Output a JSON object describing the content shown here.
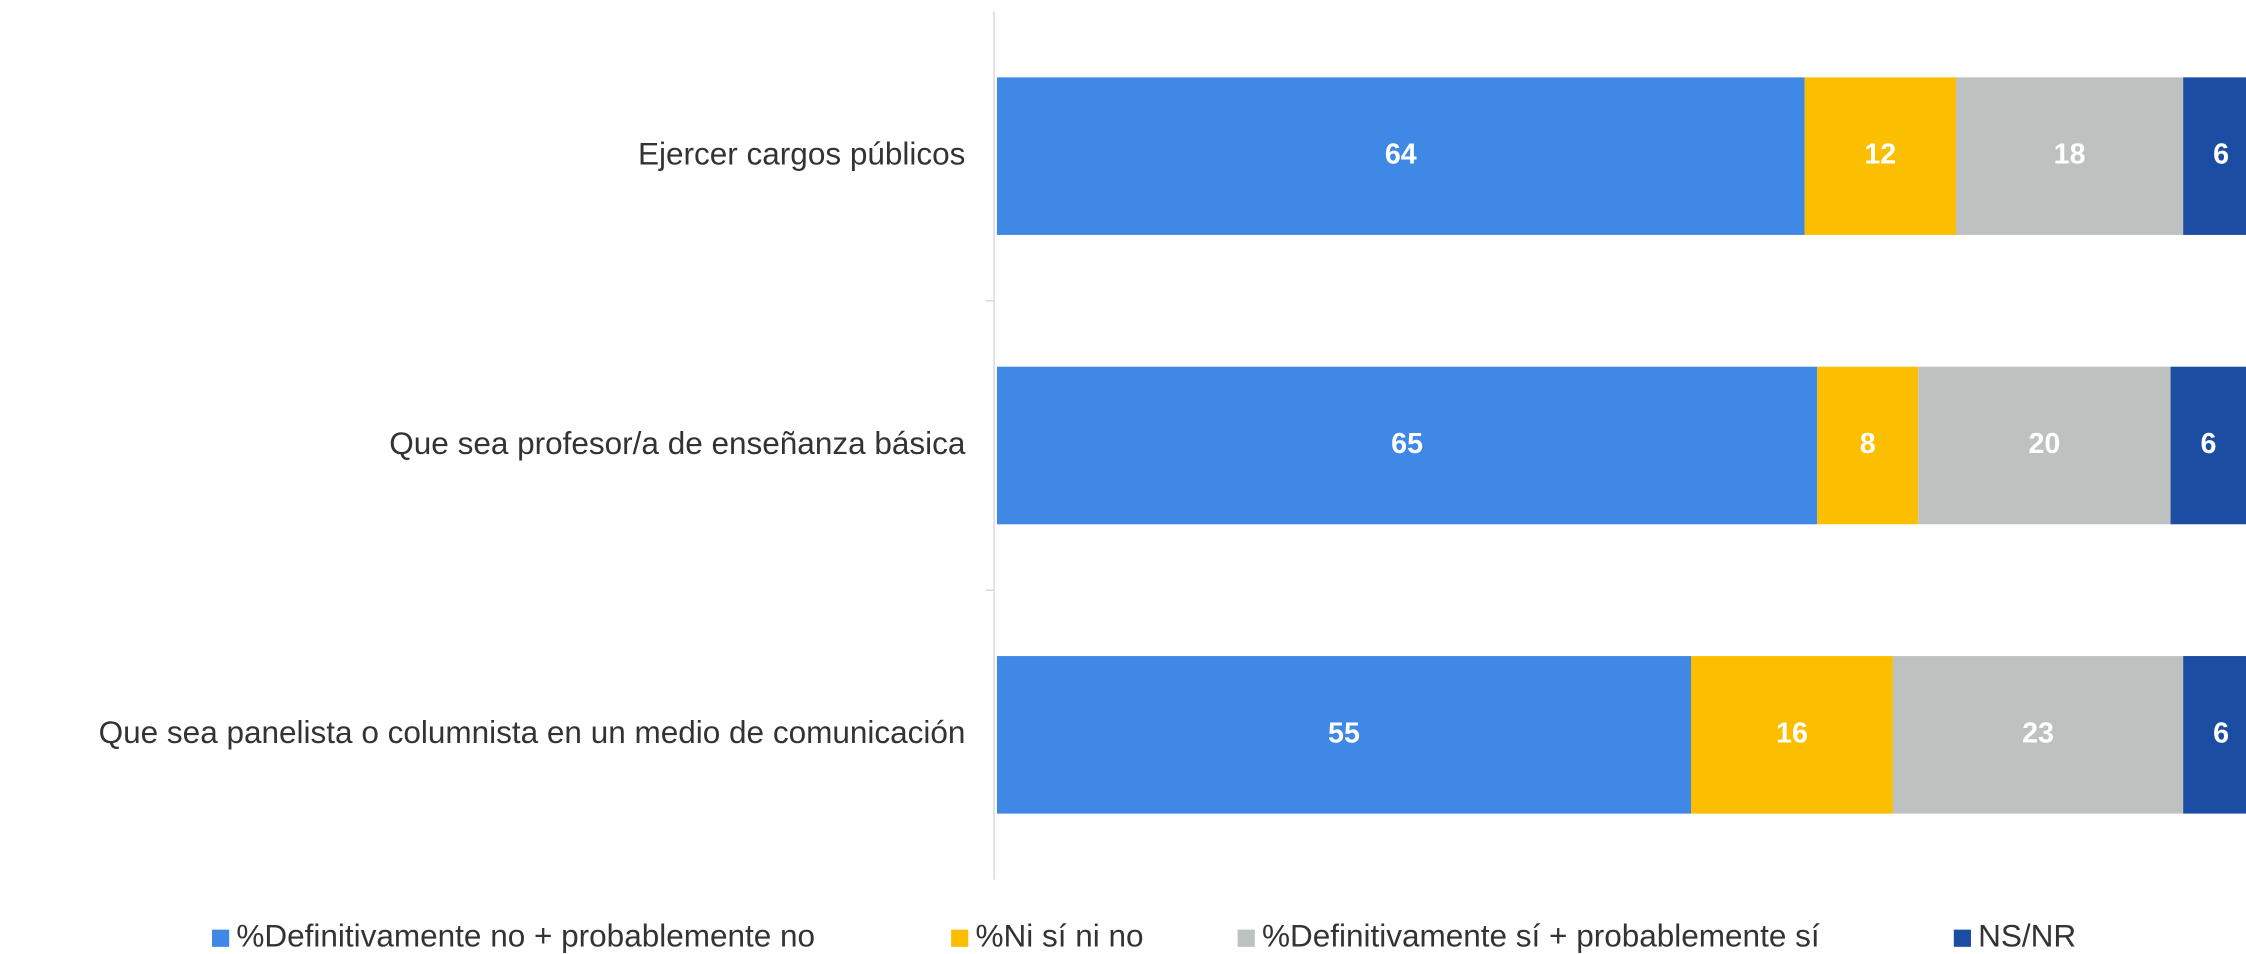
{
  "chart_data": {
    "type": "stacked-bar-horizontal",
    "categories": [
      "Ejercer cargos públicos",
      "Que sea profesor/a de enseñanza básica",
      "Que sea panelista o columnista en un medio de comunicación"
    ],
    "series": [
      {
        "name": "%Definitivamente no + probablemente no",
        "color": "#3f88e5",
        "values": [
          64,
          65,
          55
        ]
      },
      {
        "name": "%Ni sí ni no",
        "color": "#fbbe00",
        "values": [
          12,
          8,
          16
        ]
      },
      {
        "name": "%Definitivamente sí + probablemente sí",
        "color": "#bdc1c0",
        "values": [
          18,
          20,
          23
        ]
      },
      {
        "name": "NS/NR",
        "color": "#1b4ea3",
        "values": [
          6,
          6,
          6
        ]
      }
    ],
    "xlim": [
      0,
      100
    ],
    "legend": "bottom"
  }
}
